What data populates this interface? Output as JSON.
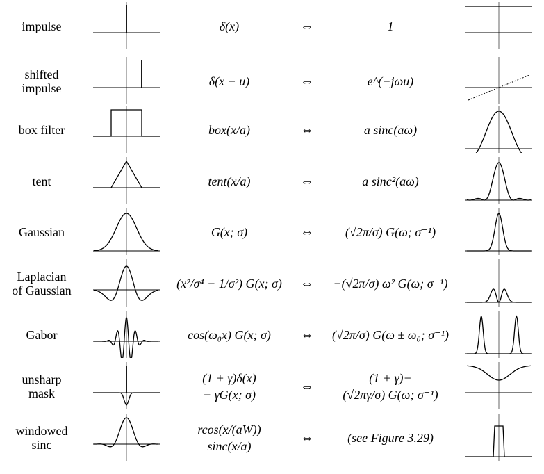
{
  "rows": [
    {
      "name": "impulse",
      "spatial": "δ(x)",
      "arrow": "⇔",
      "frequency": "1",
      "left_plot": "impulse",
      "right_plot": "constant"
    },
    {
      "name": "shifted\nimpulse",
      "spatial": "δ(x − u)",
      "arrow": "⇔",
      "frequency": "e^(−jωu)",
      "left_plot": "shifted_impulse",
      "right_plot": "linear_phase"
    },
    {
      "name": "box filter",
      "spatial": "box(x/a)",
      "arrow": "⇔",
      "frequency": "a sinc(aω)",
      "left_plot": "box",
      "right_plot": "sinc"
    },
    {
      "name": "tent",
      "spatial": "tent(x/a)",
      "arrow": "⇔",
      "frequency": "a sinc²(aω)",
      "left_plot": "tent",
      "right_plot": "sinc2"
    },
    {
      "name": "Gaussian",
      "spatial": "G(x; σ)",
      "arrow": "⇔",
      "frequency": "(√2π/σ) G(ω; σ⁻¹)",
      "left_plot": "gaussian",
      "right_plot": "gaussian_narrow"
    },
    {
      "name": "Laplacian\nof Gaussian",
      "spatial": "(x²/σ⁴ − 1/σ²) G(x; σ)",
      "arrow": "⇔",
      "frequency": "−(√2π/σ) ω² G(ω; σ⁻¹)",
      "left_plot": "log",
      "right_plot": "log_freq"
    },
    {
      "name": "Gabor",
      "spatial": "cos(ω₀x) G(x; σ)",
      "arrow": "⇔",
      "frequency": "(√2π/σ) G(ω ± ω₀; σ⁻¹)",
      "left_plot": "gabor",
      "right_plot": "gabor_freq"
    },
    {
      "name": "unsharp\nmask",
      "spatial": "(1 + γ)δ(x)\n− γG(x; σ)",
      "arrow": "⇔",
      "frequency": "(1 + γ)−\n(√2πγ/σ) G(ω; σ⁻¹)",
      "left_plot": "unsharp",
      "right_plot": "unsharp_freq"
    },
    {
      "name": "windowed\nsinc",
      "spatial": "rcos(x/(aW))\nsinc(x/a)",
      "arrow": "⇔",
      "frequency": "(see Figure 3.29)",
      "left_plot": "wsinc",
      "right_plot": "wsinc_freq"
    }
  ]
}
